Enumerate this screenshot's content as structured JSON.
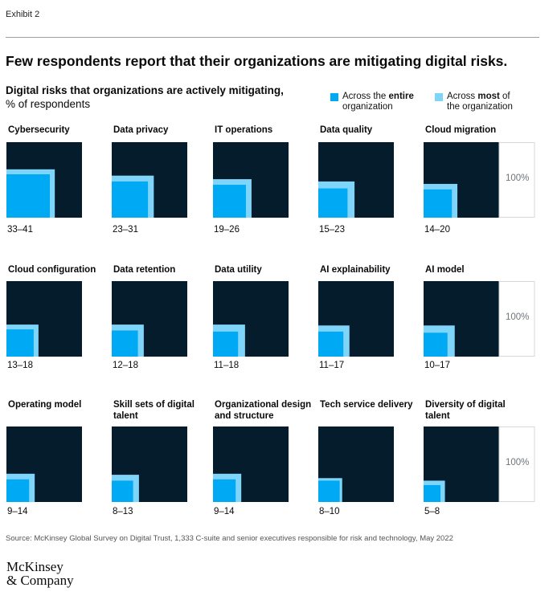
{
  "exhibit_label": "Exhibit 2",
  "headline": "Few respondents report that their organizations are mitigating digital risks.",
  "footer": {
    "source": "Source: McKinsey Global Survey on Digital Trust, 1,333 C-suite and senior executives responsible for risk and technology, May 2022",
    "logo_line1": "McKinsey",
    "logo_line2": "& Company"
  },
  "colors": {
    "background_square": "#051c2c",
    "entire": "#00a9f4",
    "most": "#7fd4fa",
    "reference_border": "#d5d7d9",
    "reference_text": "#6e7479"
  },
  "chart_data": {
    "type": "nested-square",
    "title": "Digital risks that organizations are actively mitigating,",
    "unit": "% of respondents",
    "legend": [
      {
        "key": "entire",
        "prefix": "Across the ",
        "bold": "entire",
        "suffix": "",
        "line2": "organization"
      },
      {
        "key": "most",
        "prefix": "Across ",
        "bold": "most",
        "suffix": " of",
        "line2": "the organization"
      }
    ],
    "reference_label": "100%",
    "items": [
      {
        "name": "Cybersecurity",
        "entire": 33,
        "most": 41,
        "range": "33–41"
      },
      {
        "name": "Data privacy",
        "entire": 23,
        "most": 31,
        "range": "23–31"
      },
      {
        "name": "IT operations",
        "entire": 19,
        "most": 26,
        "range": "19–26"
      },
      {
        "name": "Data quality",
        "entire": 15,
        "most": 23,
        "range": "15–23"
      },
      {
        "name": "Cloud migration",
        "entire": 14,
        "most": 20,
        "range": "14–20"
      },
      {
        "name": "Cloud configuration",
        "entire": 13,
        "most": 18,
        "range": "13–18"
      },
      {
        "name": "Data retention",
        "entire": 12,
        "most": 18,
        "range": "12–18"
      },
      {
        "name": "Data utility",
        "entire": 11,
        "most": 18,
        "range": "11–18"
      },
      {
        "name": "AI explainability",
        "entire": 11,
        "most": 17,
        "range": "11–17"
      },
      {
        "name": "AI model",
        "entire": 10,
        "most": 17,
        "range": "10–17"
      },
      {
        "name": "Operating model",
        "entire": 9,
        "most": 14,
        "range": "9–14"
      },
      {
        "name": "Skill sets of digital talent",
        "entire": 8,
        "most": 13,
        "range": "8–13"
      },
      {
        "name": "Organizational design and structure",
        "entire": 9,
        "most": 14,
        "range": "9–14"
      },
      {
        "name": "Tech service delivery",
        "entire": 8,
        "most": 10,
        "range": "8–10"
      },
      {
        "name": "Diversity of digital talent",
        "entire": 5,
        "most": 8,
        "range": "5–8"
      }
    ]
  }
}
